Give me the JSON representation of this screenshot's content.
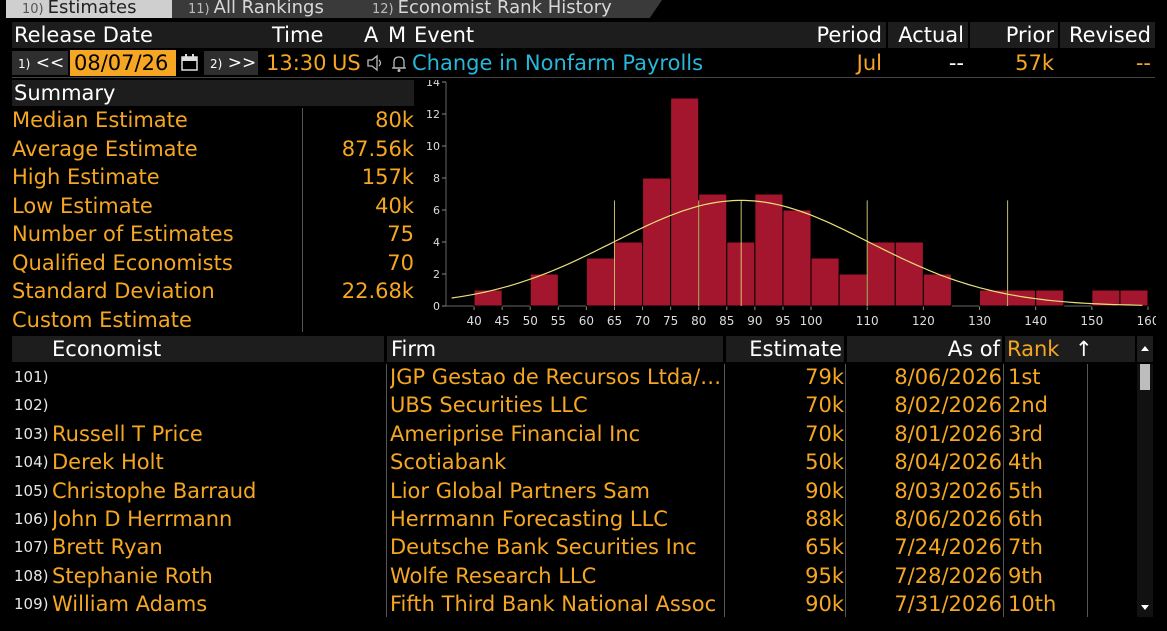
{
  "tabs": [
    {
      "num": "10)",
      "label": "Estimates",
      "active": true
    },
    {
      "num": "11)",
      "label": "All Rankings",
      "active": false
    },
    {
      "num": "12)",
      "label": "Economist Rank History",
      "active": false
    }
  ],
  "header": {
    "release_date": "Release Date",
    "time": "Time",
    "a": "A",
    "m": "M",
    "event": "Event",
    "period": "Period",
    "actual": "Actual",
    "prior": "Prior",
    "revised": "Revised"
  },
  "release": {
    "prev_num": "1)",
    "prev_label": "<<",
    "date": "08/07/26",
    "next_num": "2)",
    "next_label": ">>",
    "time": "13:30",
    "region": "US",
    "event": "Change in Nonfarm Payrolls",
    "period": "Jul",
    "actual": "--",
    "prior": "57k",
    "revised": "--"
  },
  "summary": {
    "title": "Summary",
    "rows": [
      {
        "label": "Median Estimate",
        "value": "80k"
      },
      {
        "label": "Average Estimate",
        "value": "87.56k"
      },
      {
        "label": "High Estimate",
        "value": "157k"
      },
      {
        "label": "Low Estimate",
        "value": "40k"
      },
      {
        "label": "Number of Estimates",
        "value": "75"
      },
      {
        "label": "Qualified Economists",
        "value": "70"
      },
      {
        "label": "Standard Deviation",
        "value": "22.68k"
      },
      {
        "label": "Custom Estimate",
        "value": ""
      }
    ]
  },
  "chart_data": {
    "type": "bar",
    "bin_width": 5,
    "bins": [
      40,
      45,
      50,
      55,
      60,
      65,
      70,
      75,
      80,
      85,
      90,
      95,
      100,
      105,
      110,
      115,
      120,
      125,
      130,
      135,
      140,
      145,
      150,
      155
    ],
    "values": [
      1,
      0,
      2,
      0,
      3,
      4,
      8,
      13,
      7,
      4,
      7,
      6,
      3,
      2,
      4,
      4,
      2,
      0,
      1,
      1,
      1,
      0,
      1,
      1
    ],
    "xlim": [
      35,
      160
    ],
    "ylim": [
      0,
      14
    ],
    "x_ticks": [
      40,
      45,
      50,
      55,
      60,
      65,
      70,
      75,
      80,
      85,
      90,
      95,
      100,
      110,
      120,
      130,
      140,
      150,
      160
    ],
    "y_ticks": [
      0,
      2,
      4,
      6,
      8,
      10,
      12,
      14
    ],
    "normal_curve": {
      "mean": 87.56,
      "sd": 22.68,
      "peak": 6.6
    },
    "highlight_lines": [
      65,
      80,
      87.56,
      110,
      135
    ],
    "bar_color": "#a3162d",
    "curve_color": "#e8e07a"
  },
  "table": {
    "columns": {
      "economist": "Economist",
      "firm": "Firm",
      "estimate": "Estimate",
      "as_of": "As of",
      "rank": "Rank",
      "sort_arrow": "↑"
    },
    "rows": [
      {
        "num": "101)",
        "economist": "",
        "firm": "JGP Gestao de Recursos Ltda/…",
        "estimate": "79k",
        "as_of": "8/06/2026",
        "rank": "1st"
      },
      {
        "num": "102)",
        "economist": "",
        "firm": "UBS Securities LLC",
        "estimate": "70k",
        "as_of": "8/02/2026",
        "rank": "2nd"
      },
      {
        "num": "103)",
        "economist": "Russell T Price",
        "firm": "Ameriprise Financial Inc",
        "estimate": "70k",
        "as_of": "8/01/2026",
        "rank": "3rd"
      },
      {
        "num": "104)",
        "economist": "Derek Holt",
        "firm": "Scotiabank",
        "estimate": "50k",
        "as_of": "8/04/2026",
        "rank": "4th"
      },
      {
        "num": "105)",
        "economist": "Christophe Barraud",
        "firm": "Lior Global Partners Sam",
        "estimate": "90k",
        "as_of": "8/03/2026",
        "rank": "5th"
      },
      {
        "num": "106)",
        "economist": "John D Herrmann",
        "firm": "Herrmann Forecasting LLC",
        "estimate": "88k",
        "as_of": "8/06/2026",
        "rank": "6th"
      },
      {
        "num": "107)",
        "economist": "Brett Ryan",
        "firm": "Deutsche Bank Securities Inc",
        "estimate": "65k",
        "as_of": "7/24/2026",
        "rank": "7th"
      },
      {
        "num": "108)",
        "economist": "Stephanie Roth",
        "firm": "Wolfe Research LLC",
        "estimate": "95k",
        "as_of": "7/28/2026",
        "rank": "9th"
      },
      {
        "num": "109)",
        "economist": "William Adams",
        "firm": "Fifth Third Bank National Assoc",
        "estimate": "90k",
        "as_of": "7/31/2026",
        "rank": "10th"
      }
    ]
  },
  "icons": {
    "calendar": "calendar-icon",
    "speaker": "speaker-icon",
    "bell": "bell-icon",
    "scroll_up": "scroll-up-icon",
    "scroll_down": "scroll-down-icon"
  },
  "colors": {
    "orange": "#f5a623",
    "cyan": "#26b7d9",
    "header_bg": "#1d1d1d",
    "date_bg": "#f5a623"
  }
}
